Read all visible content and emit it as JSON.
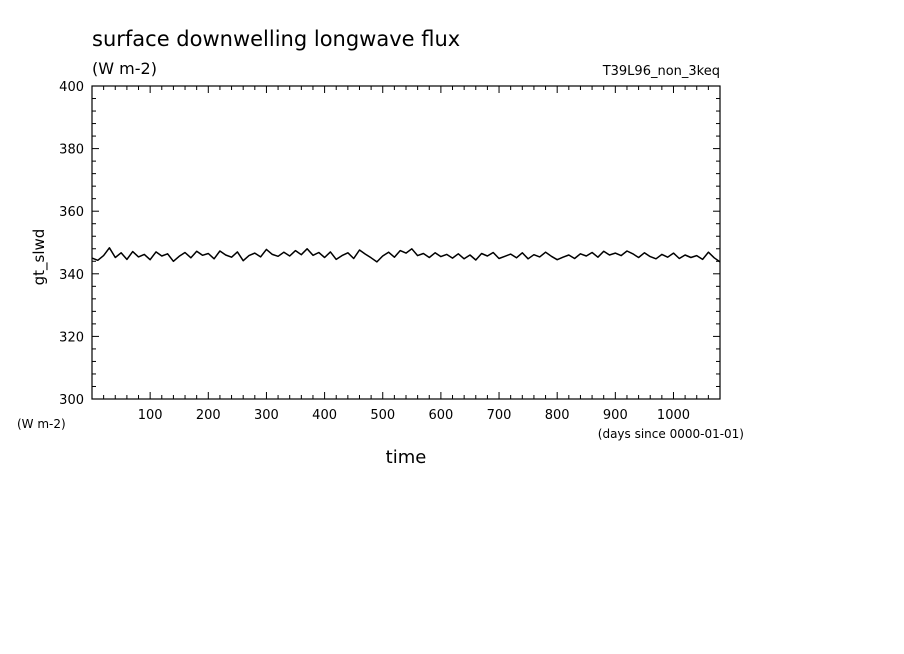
{
  "chart_data": {
    "type": "line",
    "title": "surface downwelling longwave flux",
    "subtitle": "(W m-2)",
    "run_label": "T39L96_non_3keq",
    "xlabel": "time",
    "xunits": "(days since 0000-01-01)",
    "ylabel": "gt_slwd",
    "yunits": "(W m-2)",
    "xlim": [
      0,
      1080
    ],
    "ylim": [
      300,
      400
    ],
    "x_ticks": [
      100,
      200,
      300,
      400,
      500,
      600,
      700,
      800,
      900,
      1000
    ],
    "y_ticks": [
      300,
      320,
      340,
      360,
      380,
      400
    ],
    "grid": false,
    "series": [
      {
        "color": "#000000",
        "x": [
          0,
          10,
          20,
          30,
          40,
          50,
          60,
          70,
          80,
          90,
          100,
          110,
          120,
          130,
          140,
          150,
          160,
          170,
          180,
          190,
          200,
          210,
          220,
          230,
          240,
          250,
          260,
          270,
          280,
          290,
          300,
          310,
          320,
          330,
          340,
          350,
          360,
          370,
          380,
          390,
          400,
          410,
          420,
          430,
          440,
          450,
          460,
          470,
          480,
          490,
          500,
          510,
          520,
          530,
          540,
          550,
          560,
          570,
          580,
          590,
          600,
          610,
          620,
          630,
          640,
          650,
          660,
          670,
          680,
          690,
          700,
          710,
          720,
          730,
          740,
          750,
          760,
          770,
          780,
          790,
          800,
          810,
          820,
          830,
          840,
          850,
          860,
          870,
          880,
          890,
          900,
          910,
          920,
          930,
          940,
          950,
          960,
          970,
          980,
          990,
          1000,
          1010,
          1020,
          1030,
          1040,
          1050,
          1060,
          1070,
          1080
        ],
        "values": [
          345.0,
          344.3,
          345.8,
          348.3,
          345.2,
          346.7,
          344.6,
          347.1,
          345.4,
          346.2,
          344.5,
          347.0,
          345.7,
          346.4,
          344.0,
          345.6,
          346.8,
          345.1,
          347.2,
          345.9,
          346.5,
          344.8,
          347.3,
          346.0,
          345.3,
          347.0,
          344.2,
          345.8,
          346.6,
          345.4,
          347.8,
          346.2,
          345.6,
          346.9,
          345.7,
          347.4,
          346.1,
          348.0,
          345.9,
          346.8,
          345.2,
          347.0,
          344.6,
          345.8,
          346.7,
          344.9,
          347.6,
          346.3,
          345.1,
          343.8,
          345.7,
          346.9,
          345.3,
          347.4,
          346.6,
          348.0,
          345.8,
          346.5,
          345.2,
          346.7,
          345.5,
          346.2,
          345.0,
          346.4,
          344.8,
          346.0,
          344.4,
          346.5,
          345.7,
          346.8,
          344.9,
          345.6,
          346.3,
          345.1,
          346.7,
          344.8,
          346.1,
          345.4,
          346.9,
          345.6,
          344.5,
          345.3,
          346.0,
          344.9,
          346.4,
          345.7,
          346.8,
          345.3,
          347.2,
          346.0,
          346.6,
          345.8,
          347.3,
          346.4,
          345.2,
          346.7,
          345.5,
          344.8,
          346.2,
          345.3,
          346.6,
          344.9,
          346.0,
          345.2,
          345.8,
          344.6,
          346.9,
          345.1,
          343.8
        ]
      }
    ]
  }
}
